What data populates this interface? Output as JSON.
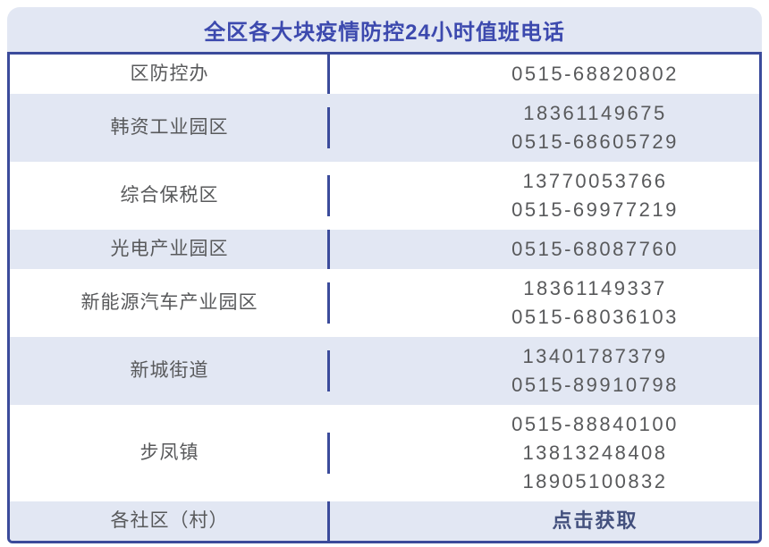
{
  "title": "全区各大块疫情防控24小时值班电话",
  "table": {
    "rows": [
      {
        "label": "区防控办",
        "phones": [
          "0515-68820802"
        ]
      },
      {
        "label": "韩资工业园区",
        "phones": [
          "18361149675",
          "0515-68605729"
        ]
      },
      {
        "label": "综合保税区",
        "phones": [
          "13770053766",
          "0515-69977219"
        ]
      },
      {
        "label": "光电产业园区",
        "phones": [
          "0515-68087760"
        ]
      },
      {
        "label": "新能源汽车产业园区",
        "phones": [
          "18361149337",
          "0515-68036103"
        ]
      },
      {
        "label": "新城街道",
        "phones": [
          "13401787379",
          "0515-89910798"
        ]
      },
      {
        "label": "步凤镇",
        "phones": [
          "0515-88840100",
          "13813248408",
          "18905100832"
        ]
      },
      {
        "label": "各社区（村）",
        "phones": [],
        "action": "点击获取"
      }
    ]
  },
  "colors": {
    "border": "#3b4b9b",
    "stripe": "#e2e7f3",
    "title_text": "#3c49ae",
    "body_text": "#58595b",
    "action_text": "#44517e"
  }
}
